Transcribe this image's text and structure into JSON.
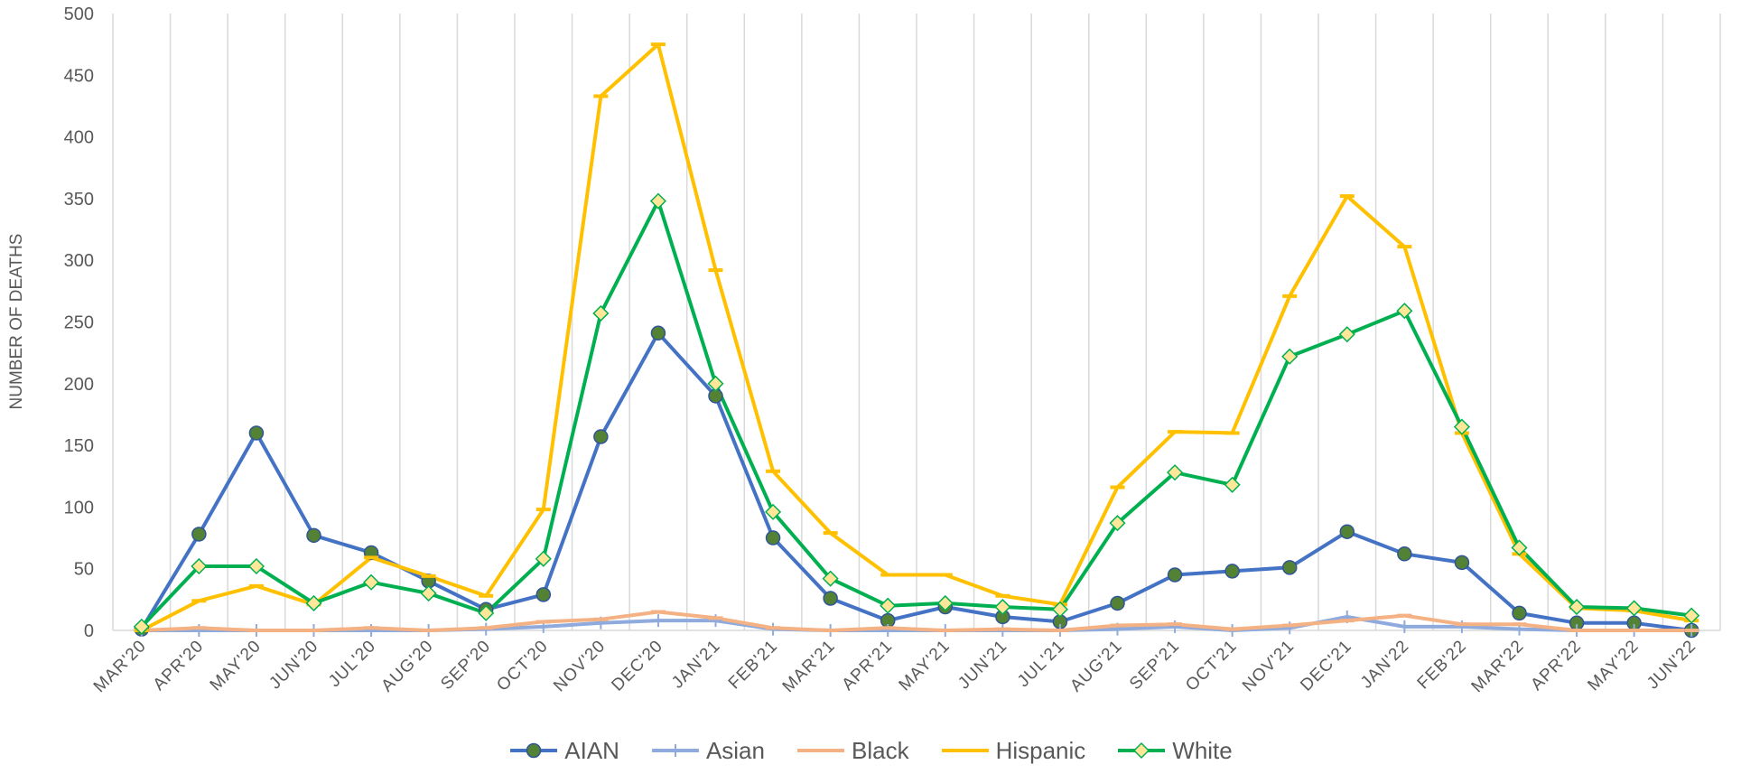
{
  "chart_data": {
    "type": "line",
    "ylabel": "NUMBER OF DEATHS",
    "xlabel": "",
    "ylim": [
      0,
      500
    ],
    "yticks": [
      0,
      50,
      100,
      150,
      200,
      250,
      300,
      350,
      400,
      450,
      500
    ],
    "grid": "vertical",
    "legend_position": "bottom",
    "categories": [
      "MAR'20",
      "APR'20",
      "MAY'20",
      "JUN'20",
      "JUL'20",
      "AUG'20",
      "SEP'20",
      "OCT'20",
      "NOV'20",
      "DEC'20",
      "JAN'21",
      "FEB'21",
      "MAR'21",
      "APR'21",
      "MAY'21",
      "JUN'21",
      "JUL'21",
      "AUG'21",
      "SEP'21",
      "OCT'21",
      "NOV'21",
      "DEC'21",
      "JAN'22",
      "FEB'22",
      "MAR'22",
      "APR'22",
      "MAY'22",
      "JUN'22"
    ],
    "series": [
      {
        "name": "AIAN",
        "color": "#4472C4",
        "marker": "circle",
        "marker_color": "#548235",
        "values": [
          1,
          78,
          160,
          77,
          63,
          40,
          17,
          29,
          157,
          241,
          190,
          75,
          26,
          8,
          19,
          11,
          7,
          22,
          45,
          48,
          51,
          80,
          62,
          55,
          14,
          6,
          6,
          0
        ]
      },
      {
        "name": "Asian",
        "color": "#8FAADC",
        "marker": "plus",
        "marker_color": "#8FAADC",
        "values": [
          0,
          0,
          0,
          0,
          0,
          0,
          1,
          3,
          6,
          8,
          8,
          1,
          0,
          0,
          0,
          0,
          0,
          1,
          3,
          0,
          2,
          11,
          3,
          3,
          1,
          0,
          0,
          0
        ]
      },
      {
        "name": "Black",
        "color": "#F4B183",
        "marker": "dash",
        "marker_color": "#F4B183",
        "values": [
          0,
          2,
          0,
          0,
          2,
          0,
          2,
          7,
          9,
          15,
          10,
          2,
          0,
          2,
          0,
          1,
          0,
          4,
          5,
          1,
          4,
          8,
          12,
          5,
          5,
          0,
          0,
          0
        ]
      },
      {
        "name": "Hispanic",
        "color": "#FFC000",
        "marker": "dash",
        "marker_color": "#FFC000",
        "values": [
          0,
          24,
          36,
          21,
          59,
          44,
          28,
          98,
          433,
          475,
          292,
          129,
          79,
          45,
          45,
          28,
          21,
          116,
          161,
          160,
          271,
          352,
          311,
          160,
          62,
          18,
          16,
          8
        ]
      },
      {
        "name": "White",
        "color": "#00B050",
        "marker": "diamond",
        "marker_color": "#FFE699",
        "values": [
          3,
          52,
          52,
          22,
          39,
          30,
          14,
          58,
          257,
          348,
          200,
          96,
          42,
          20,
          22,
          19,
          17,
          87,
          128,
          118,
          222,
          240,
          259,
          165,
          67,
          19,
          18,
          12
        ]
      }
    ]
  }
}
